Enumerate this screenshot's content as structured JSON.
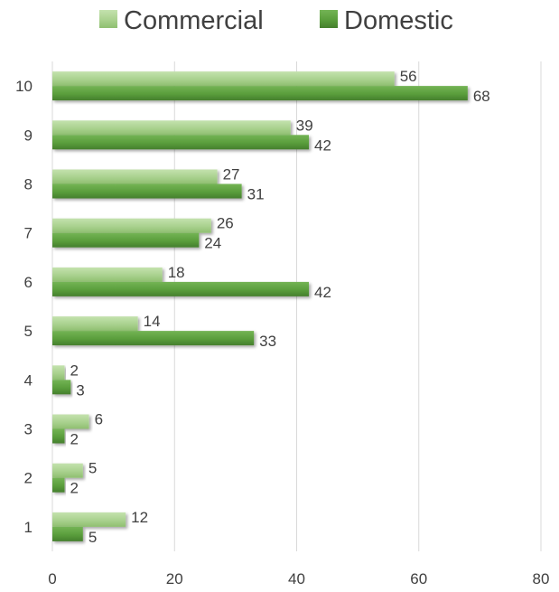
{
  "chart_data": {
    "type": "bar",
    "orientation": "horizontal",
    "categories": [
      "1",
      "2",
      "3",
      "4",
      "5",
      "6",
      "7",
      "8",
      "9",
      "10"
    ],
    "series": [
      {
        "name": "Commercial",
        "values": [
          12,
          5,
          6,
          2,
          14,
          18,
          26,
          27,
          39,
          56
        ],
        "color": "#a9d18e"
      },
      {
        "name": "Domestic",
        "values": [
          5,
          2,
          2,
          3,
          33,
          42,
          24,
          31,
          42,
          68
        ],
        "color": "#5a9e3c"
      }
    ],
    "xlim": [
      0,
      80
    ],
    "xticks": [
      0,
      20,
      40,
      60,
      80
    ],
    "grid": "vertical",
    "legend": "top-center",
    "data_labels": true
  }
}
